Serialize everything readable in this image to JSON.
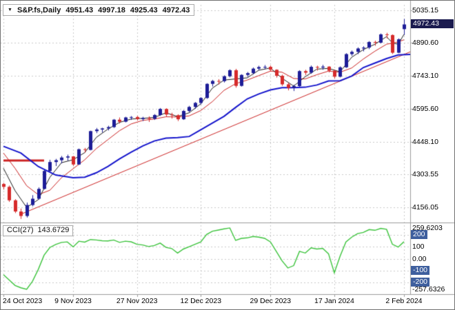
{
  "header": {
    "dropdown_icon": "▼",
    "symbol": "S&P.fs,Daily",
    "open": "4951.43",
    "high": "4997.18",
    "low": "4925.43",
    "close": "4972.43"
  },
  "price_axis": {
    "labels": [
      "5035.15",
      "4890.60",
      "4743.10",
      "4595.60",
      "4448.10",
      "4303.55",
      "4156.05"
    ],
    "current_badge": "4972.43"
  },
  "time_axis": {
    "labels": [
      "24 Oct 2023",
      "9 Nov 2023",
      "27 Nov 2023",
      "12 Dec 2023",
      "29 Dec 2023",
      "17 Jan 2024",
      "2 Feb 2024"
    ]
  },
  "indicator_panel": {
    "name": "CCI(27)",
    "value": "143.6729",
    "axis_labels_plain": [
      {
        "text": "259.6203",
        "value": 259.6203
      },
      {
        "text": "100",
        "value": 100
      },
      {
        "text": "0.00",
        "value": 0
      },
      {
        "text": "-257.6326",
        "value": -257.6326
      }
    ],
    "axis_labels_badge": [
      {
        "text": "200",
        "value": 200
      },
      {
        "text": "-100",
        "value": -100
      },
      {
        "text": "-200",
        "value": -200
      }
    ]
  },
  "colors": {
    "up_candle": "#1d1d97",
    "down_candle": "#d62b2b",
    "cci_line": "#3cc43c",
    "grid": "#c9c9c9",
    "separator": "#9a9a9a",
    "badge_price_bg": "#1b1b4f",
    "badge_level_bg": "#3e5f9e",
    "trendline": "#cc2222",
    "ma_fast": "#1a1a1a",
    "ma_medium": "#cc2222",
    "ma_slow": "#1414cc"
  },
  "chart_data": {
    "type": "candlestick",
    "symbol": "S&P.fs",
    "timeframe": "Daily",
    "bars": 70,
    "ohlc_current": [
      4951.43,
      4997.18,
      4925.43,
      4972.43
    ],
    "current_price": 4972.43,
    "price_gridlines": [
      5035.15,
      4890.6,
      4743.1,
      4595.6,
      4448.1,
      4303.55,
      4156.05
    ],
    "ylim_price": [
      4094,
      5060
    ],
    "date_tick_bars": [
      0,
      12,
      23,
      34,
      46,
      57,
      69
    ],
    "candles": [
      [
        4260,
        4265,
        4235,
        4247
      ],
      [
        4247,
        4253,
        4180,
        4187
      ],
      [
        4187,
        4192,
        4130,
        4137
      ],
      [
        4137,
        4150,
        4104,
        4117
      ],
      [
        4117,
        4177,
        4110,
        4166
      ],
      [
        4166,
        4210,
        4160,
        4194
      ],
      [
        4194,
        4245,
        4190,
        4238
      ],
      [
        4238,
        4322,
        4236,
        4318
      ],
      [
        4318,
        4368,
        4315,
        4358
      ],
      [
        4358,
        4372,
        4340,
        4366
      ],
      [
        4366,
        4385,
        4352,
        4378
      ],
      [
        4378,
        4391,
        4364,
        4383
      ],
      [
        4383,
        4385,
        4340,
        4347
      ],
      [
        4347,
        4418,
        4345,
        4415
      ],
      [
        4415,
        4421,
        4400,
        4412
      ],
      [
        4412,
        4498,
        4410,
        4496
      ],
      [
        4496,
        4510,
        4487,
        4503
      ],
      [
        4503,
        4511,
        4490,
        4508
      ],
      [
        4508,
        4520,
        4499,
        4514
      ],
      [
        4514,
        4550,
        4510,
        4547
      ],
      [
        4547,
        4557,
        4530,
        4538
      ],
      [
        4538,
        4560,
        4535,
        4557
      ],
      [
        4557,
        4563,
        4546,
        4559
      ],
      [
        4559,
        4564,
        4543,
        4550
      ],
      [
        4550,
        4560,
        4541,
        4555
      ],
      [
        4555,
        4562,
        4537,
        4551
      ],
      [
        4551,
        4572,
        4546,
        4568
      ],
      [
        4568,
        4599,
        4564,
        4595
      ],
      [
        4595,
        4598,
        4562,
        4570
      ],
      [
        4570,
        4578,
        4552,
        4567
      ],
      [
        4567,
        4571,
        4541,
        4549
      ],
      [
        4549,
        4590,
        4546,
        4586
      ],
      [
        4586,
        4609,
        4580,
        4604
      ],
      [
        4604,
        4626,
        4596,
        4622
      ],
      [
        4622,
        4648,
        4615,
        4644
      ],
      [
        4644,
        4710,
        4640,
        4707
      ],
      [
        4707,
        4725,
        4695,
        4720
      ],
      [
        4720,
        4728,
        4704,
        4719
      ],
      [
        4719,
        4745,
        4713,
        4741
      ],
      [
        4741,
        4772,
        4736,
        4768
      ],
      [
        4768,
        4774,
        4690,
        4698
      ],
      [
        4698,
        4750,
        4695,
        4747
      ],
      [
        4747,
        4760,
        4738,
        4755
      ],
      [
        4755,
        4780,
        4750,
        4775
      ],
      [
        4775,
        4788,
        4768,
        4782
      ],
      [
        4782,
        4791,
        4773,
        4783
      ],
      [
        4783,
        4789,
        4762,
        4770
      ],
      [
        4770,
        4772,
        4735,
        4743
      ],
      [
        4743,
        4748,
        4698,
        4705
      ],
      [
        4705,
        4712,
        4678,
        4689
      ],
      [
        4689,
        4703,
        4675,
        4697
      ],
      [
        4697,
        4768,
        4694,
        4764
      ],
      [
        4764,
        4770,
        4746,
        4757
      ],
      [
        4757,
        4789,
        4752,
        4783
      ],
      [
        4783,
        4788,
        4766,
        4780
      ],
      [
        4780,
        4792,
        4770,
        4784
      ],
      [
        4784,
        4786,
        4758,
        4766
      ],
      [
        4766,
        4770,
        4730,
        4739
      ],
      [
        4739,
        4785,
        4736,
        4781
      ],
      [
        4781,
        4844,
        4778,
        4840
      ],
      [
        4840,
        4856,
        4832,
        4850
      ],
      [
        4850,
        4870,
        4840,
        4865
      ],
      [
        4865,
        4875,
        4852,
        4869
      ],
      [
        4869,
        4898,
        4862,
        4894
      ],
      [
        4894,
        4900,
        4877,
        4891
      ],
      [
        4891,
        4932,
        4888,
        4928
      ],
      [
        4928,
        4935,
        4910,
        4925
      ],
      [
        4925,
        4928,
        4840,
        4846
      ],
      [
        4846,
        4910,
        4844,
        4906
      ],
      [
        4951.43,
        4997.18,
        4925.43,
        4972.43
      ]
    ],
    "overlays": {
      "ma_fast": {
        "points": [
          [
            0,
            4330
          ],
          [
            2,
            4230
          ],
          [
            4,
            4155
          ],
          [
            6,
            4190
          ],
          [
            8,
            4290
          ],
          [
            10,
            4355
          ],
          [
            12,
            4368
          ],
          [
            14,
            4400
          ],
          [
            16,
            4468
          ],
          [
            18,
            4505
          ],
          [
            20,
            4535
          ],
          [
            22,
            4550
          ],
          [
            24,
            4553
          ],
          [
            26,
            4557
          ],
          [
            28,
            4578
          ],
          [
            30,
            4561
          ],
          [
            32,
            4578
          ],
          [
            34,
            4618
          ],
          [
            36,
            4688
          ],
          [
            38,
            4724
          ],
          [
            40,
            4729
          ],
          [
            42,
            4734
          ],
          [
            44,
            4768
          ],
          [
            46,
            4778
          ],
          [
            48,
            4732
          ],
          [
            50,
            4697
          ],
          [
            52,
            4739
          ],
          [
            54,
            4773
          ],
          [
            56,
            4776
          ],
          [
            58,
            4761
          ],
          [
            60,
            4826
          ],
          [
            62,
            4860
          ],
          [
            64,
            4884
          ],
          [
            66,
            4918
          ],
          [
            67,
            4890
          ],
          [
            68,
            4884
          ],
          [
            69,
            4928
          ]
        ]
      },
      "ma_medium": {
        "points": [
          [
            0,
            4398
          ],
          [
            2,
            4330
          ],
          [
            4,
            4252
          ],
          [
            6,
            4212
          ],
          [
            8,
            4232
          ],
          [
            10,
            4288
          ],
          [
            12,
            4328
          ],
          [
            14,
            4368
          ],
          [
            16,
            4418
          ],
          [
            18,
            4458
          ],
          [
            20,
            4498
          ],
          [
            22,
            4528
          ],
          [
            24,
            4544
          ],
          [
            26,
            4550
          ],
          [
            28,
            4560
          ],
          [
            30,
            4559
          ],
          [
            32,
            4564
          ],
          [
            34,
            4588
          ],
          [
            36,
            4628
          ],
          [
            38,
            4678
          ],
          [
            40,
            4708
          ],
          [
            42,
            4724
          ],
          [
            44,
            4744
          ],
          [
            46,
            4764
          ],
          [
            48,
            4759
          ],
          [
            50,
            4731
          ],
          [
            52,
            4729
          ],
          [
            54,
            4748
          ],
          [
            56,
            4764
          ],
          [
            58,
            4759
          ],
          [
            60,
            4778
          ],
          [
            62,
            4818
          ],
          [
            64,
            4853
          ],
          [
            66,
            4884
          ],
          [
            68,
            4894
          ],
          [
            69,
            4904
          ]
        ]
      },
      "ma_slow": {
        "points": [
          [
            0,
            4428
          ],
          [
            3,
            4398
          ],
          [
            6,
            4338
          ],
          [
            9,
            4300
          ],
          [
            12,
            4288
          ],
          [
            14,
            4290
          ],
          [
            16,
            4310
          ],
          [
            18,
            4338
          ],
          [
            20,
            4372
          ],
          [
            22,
            4402
          ],
          [
            24,
            4430
          ],
          [
            26,
            4452
          ],
          [
            28,
            4465
          ],
          [
            30,
            4467
          ],
          [
            32,
            4472
          ],
          [
            34,
            4502
          ],
          [
            36,
            4532
          ],
          [
            38,
            4562
          ],
          [
            40,
            4602
          ],
          [
            42,
            4640
          ],
          [
            44,
            4662
          ],
          [
            46,
            4680
          ],
          [
            48,
            4690
          ],
          [
            50,
            4690
          ],
          [
            52,
            4692
          ],
          [
            54,
            4702
          ],
          [
            56,
            4720
          ],
          [
            58,
            4721
          ],
          [
            60,
            4742
          ],
          [
            62,
            4780
          ],
          [
            64,
            4800
          ],
          [
            66,
            4820
          ],
          [
            68,
            4836
          ],
          [
            71,
            4840
          ]
        ]
      },
      "trendline": {
        "x1": 3,
        "p1": 4125,
        "x2": 71,
        "p2": 4860
      },
      "horizontal_segment": {
        "x1": 0,
        "x2": 7,
        "price": 4365
      }
    },
    "indicator": {
      "type": "line",
      "name": "CCI",
      "period": 27,
      "current": 143.6729,
      "levels": [
        200,
        100,
        0,
        -100,
        -200
      ],
      "range_max": 259.6203,
      "range_min": -257.6326,
      "ylim": [
        -287,
        294
      ],
      "values": [
        -135,
        -180,
        -225,
        -245,
        -257.63,
        -190,
        -90,
        30,
        95,
        120,
        138,
        142,
        100,
        148,
        140,
        162,
        158,
        152,
        150,
        158,
        138,
        148,
        143,
        122,
        116,
        103,
        112,
        132,
        96,
        86,
        48,
        82,
        102,
        122,
        142,
        205,
        232,
        242,
        252,
        259.62,
        155,
        172,
        176,
        188,
        182,
        172,
        142,
        62,
        -18,
        -78,
        -58,
        62,
        48,
        92,
        82,
        88,
        42,
        -118,
        22,
        142,
        182,
        212,
        222,
        246,
        240,
        256,
        248,
        122,
        98,
        143.67
      ]
    }
  }
}
